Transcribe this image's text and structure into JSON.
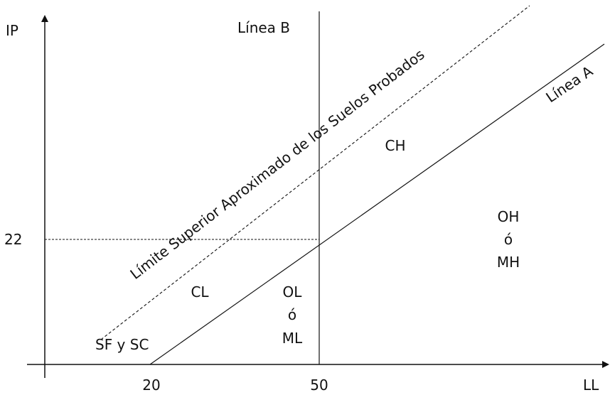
{
  "diagram": {
    "axes": {
      "y_label": "IP",
      "x_label": "LL",
      "x_ticks": [
        "20",
        "50"
      ],
      "y_ticks": [
        "22"
      ]
    },
    "lines": {
      "line_b_label": "Línea B",
      "line_a_label": "Línea A",
      "upper_limit_label": "Límite Superior Aproximado de los Suelos Probados"
    },
    "regions": {
      "ch": "CH",
      "cl": "CL",
      "ol_ml": [
        "OL",
        "ó",
        "ML"
      ],
      "oh_mh": [
        "OH",
        "ó",
        "MH"
      ],
      "sf_sc": "SF y SC"
    },
    "colors": {
      "line": "#111111",
      "text": "#111111",
      "background": "#ffffff"
    }
  }
}
